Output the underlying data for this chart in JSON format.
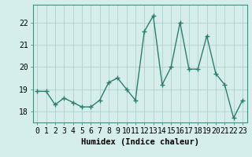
{
  "x": [
    0,
    1,
    2,
    3,
    4,
    5,
    6,
    7,
    8,
    9,
    10,
    11,
    12,
    13,
    14,
    15,
    16,
    17,
    18,
    19,
    20,
    21,
    22,
    23
  ],
  "y": [
    18.9,
    18.9,
    18.3,
    18.6,
    18.4,
    18.2,
    18.2,
    18.5,
    19.3,
    19.5,
    19.0,
    18.5,
    21.6,
    22.3,
    19.2,
    20.0,
    22.0,
    19.9,
    19.9,
    21.4,
    19.7,
    19.2,
    17.7,
    18.5
  ],
  "line_color": "#2e7d6e",
  "marker": "+",
  "marker_size": 4,
  "bg_color": "#d5eeec",
  "grid_color": "#b0d0ce",
  "xlabel": "Humidex (Indice chaleur)",
  "xlim": [
    -0.5,
    23.5
  ],
  "ylim": [
    17.5,
    22.8
  ],
  "yticks": [
    18,
    19,
    20,
    21,
    22
  ],
  "xtick_labels": [
    "0",
    "1",
    "2",
    "3",
    "4",
    "5",
    "6",
    "7",
    "8",
    "9",
    "10",
    "11",
    "12",
    "13",
    "14",
    "15",
    "16",
    "17",
    "18",
    "19",
    "20",
    "21",
    "22",
    "23"
  ],
  "xlabel_fontsize": 7.5,
  "tick_fontsize": 7
}
